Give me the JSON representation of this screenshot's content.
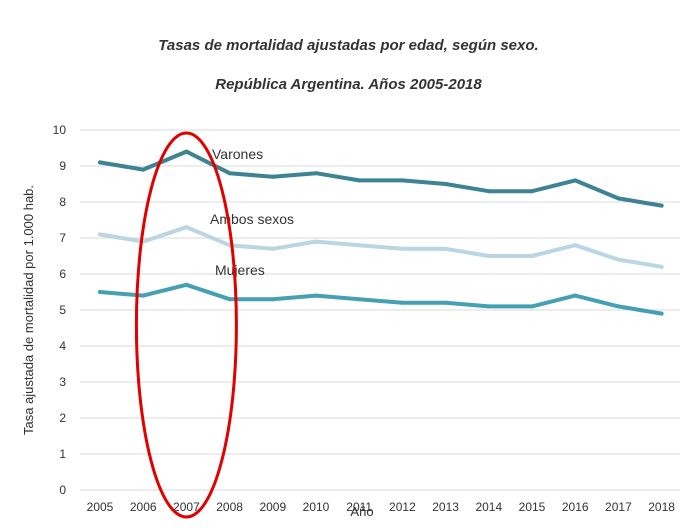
{
  "chart_data": {
    "type": "line",
    "title": "Tasas de mortalidad ajustadas por edad, según sexo.",
    "subtitle": "República Argentina.  Años 2005-2018",
    "xlabel": "Año",
    "ylabel": "Tasa ajustada de mortalidad por 1.000 hab.",
    "x": [
      "2005",
      "2006",
      "2007",
      "2008",
      "2009",
      "2010",
      "2011",
      "2012",
      "2013",
      "2014",
      "2015",
      "2016",
      "2017",
      "2018"
    ],
    "ylim": [
      0,
      10
    ],
    "yticks": [
      "0",
      "1",
      "2",
      "3",
      "4",
      "5",
      "6",
      "7",
      "8",
      "9",
      "10"
    ],
    "grid": true,
    "series": [
      {
        "name": "Varones",
        "color": "#3d8393",
        "values": [
          9.1,
          8.9,
          9.4,
          8.8,
          8.7,
          8.8,
          8.6,
          8.6,
          8.5,
          8.3,
          8.3,
          8.6,
          8.1,
          7.9
        ]
      },
      {
        "name": "Ambos sexos",
        "color": "#b9d6e2",
        "values": [
          7.1,
          6.9,
          7.3,
          6.8,
          6.7,
          6.9,
          6.8,
          6.7,
          6.7,
          6.5,
          6.5,
          6.8,
          6.4,
          6.2
        ]
      },
      {
        "name": "Mujeres",
        "color": "#45a0b4",
        "values": [
          5.5,
          5.4,
          5.7,
          5.3,
          5.3,
          5.4,
          5.3,
          5.2,
          5.2,
          5.1,
          5.1,
          5.4,
          5.1,
          4.9
        ]
      }
    ],
    "annotations": [
      {
        "type": "ellipse",
        "color": "#e00000",
        "around": "2007"
      }
    ]
  }
}
